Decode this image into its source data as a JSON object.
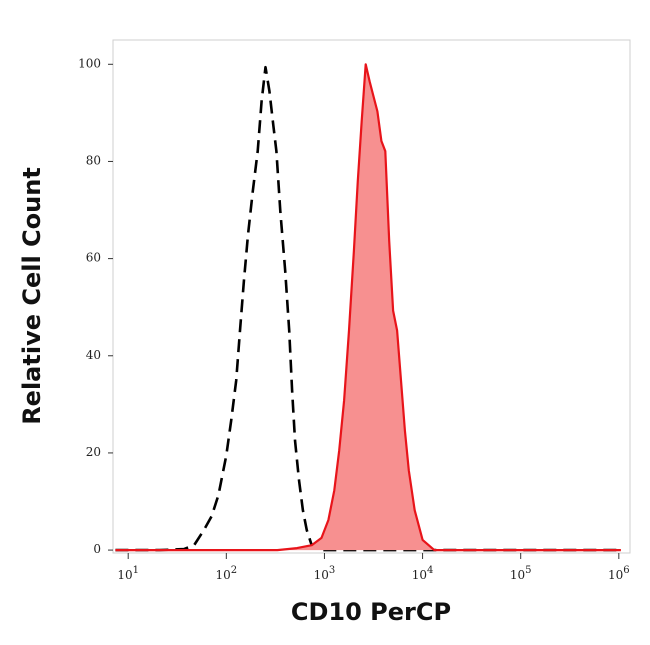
{
  "chart_data": {
    "type": "histogram-overlay",
    "xlabel": "CD10 PerCP",
    "ylabel": "Relative Cell Count",
    "xscale": "log",
    "xlim": [
      7,
      1300000
    ],
    "ylim": [
      -0.6,
      105
    ],
    "xticks": [
      {
        "value": 10,
        "label": "10",
        "exponent": "1"
      },
      {
        "value": 100,
        "label": "10",
        "exponent": "2"
      },
      {
        "value": 1000,
        "label": "10",
        "exponent": "3"
      },
      {
        "value": 10000,
        "label": "10",
        "exponent": "4"
      },
      {
        "value": 100000,
        "label": "10",
        "exponent": "5"
      },
      {
        "value": 1000000,
        "label": "10",
        "exponent": "6"
      }
    ],
    "yticks": [
      0,
      20,
      40,
      60,
      80,
      100
    ],
    "series": [
      {
        "color": "#000000",
        "style": "dashed",
        "x": [
          7.4,
          21,
          37,
          47,
          59,
          71,
          83,
          100,
          112,
          126,
          138,
          151,
          166,
          186,
          209,
          229,
          251,
          275,
          302,
          324,
          355,
          398,
          437,
          468,
          501,
          550,
          603,
          661,
          741,
          933,
          1318,
          1050000
        ],
        "values": [
          0,
          0,
          0.2,
          1,
          4.1,
          7,
          11.3,
          19.5,
          26.7,
          34.9,
          45.2,
          55.4,
          64.7,
          73.9,
          82.1,
          92.4,
          99.4,
          94.5,
          87.3,
          82.1,
          69.8,
          57.5,
          45.2,
          32.9,
          22.6,
          14.4,
          8.2,
          4.1,
          1,
          0,
          0,
          0
        ]
      },
      {
        "color": "#e8141a",
        "fill": "#f79090",
        "style": "solid",
        "x": [
          7.4,
          331,
          525,
          741,
          933,
          1096,
          1259,
          1413,
          1585,
          1778,
          1995,
          2188,
          2399,
          2630,
          2884,
          3162,
          3467,
          3802,
          4169,
          4571,
          5012,
          5495,
          6026,
          6607,
          7244,
          8318,
          10000,
          13183,
          20893,
          1050000
        ],
        "values": [
          0,
          0,
          0.4,
          1,
          2.5,
          6.2,
          12.3,
          20.5,
          30.8,
          45.2,
          61.6,
          76,
          88.3,
          100,
          96.5,
          93.4,
          90.3,
          84.2,
          82.1,
          63.6,
          49.3,
          45.2,
          34.9,
          24.6,
          16.4,
          8.2,
          2.1,
          0,
          0,
          0
        ]
      }
    ]
  }
}
